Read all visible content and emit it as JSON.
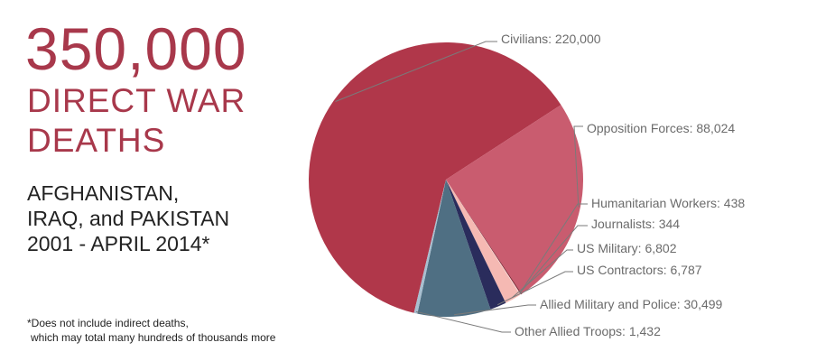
{
  "headline": {
    "number": "350,000",
    "line1": "DIRECT WAR",
    "line2": "DEATHS"
  },
  "subtitle": {
    "line1": "AFGHANISTAN,",
    "line2": "IRAQ, and PAKISTAN",
    "line3": "2001 - APRIL 2014*"
  },
  "footnote": {
    "line1": "*Does not include indirect deaths,",
    "line2": "which may total many hundreds of thousands more"
  },
  "chart_data": {
    "type": "pie",
    "title": "",
    "slices": [
      {
        "label": "Civilians: 220,000",
        "value": 220000,
        "color": "#b0374a"
      },
      {
        "label": "Opposition Forces: 88,024",
        "value": 88024,
        "color": "#c95c6f"
      },
      {
        "label": "Humanitarian Workers: 438",
        "value": 438,
        "color": "#7a1f2b"
      },
      {
        "label": "Journalists: 344",
        "value": 344,
        "color": "#f2d3d3"
      },
      {
        "label": "US Military: 6,802",
        "value": 6802,
        "color": "#f5b9b3"
      },
      {
        "label": "US Contractors: 6,787",
        "value": 6787,
        "color": "#2a2c5c"
      },
      {
        "label": "Allied Military and Police: 30,499",
        "value": 30499,
        "color": "#4f6f83"
      },
      {
        "label": "Other Allied Troops: 1,432",
        "value": 1432,
        "color": "#a8bfd0"
      }
    ],
    "legend": "none",
    "label_color": "#6b6b6b",
    "leader_color": "#7a7a7a"
  }
}
